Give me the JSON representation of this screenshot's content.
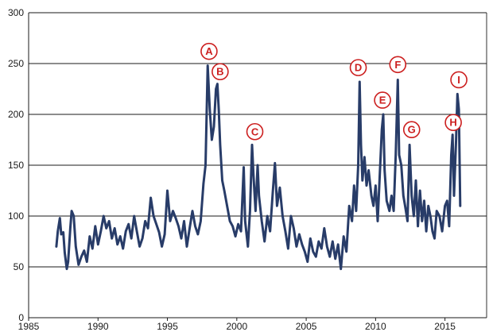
{
  "chart_data": {
    "type": "line",
    "title": "",
    "xlabel": "",
    "ylabel": "",
    "xlim": [
      1985,
      2018
    ],
    "ylim": [
      0,
      300
    ],
    "x_ticks": [
      1985,
      1990,
      1995,
      2000,
      2005,
      2010,
      2015
    ],
    "y_ticks": [
      0,
      50,
      100,
      150,
      200,
      250,
      300
    ],
    "grid": "horizontal",
    "line_color": "#283c68",
    "annotation_color": "#cc1f1f",
    "series": [
      {
        "points": [
          [
            1987.0,
            70
          ],
          [
            1987.1,
            85
          ],
          [
            1987.25,
            98
          ],
          [
            1987.35,
            82
          ],
          [
            1987.5,
            84
          ],
          [
            1987.6,
            64
          ],
          [
            1987.75,
            48
          ],
          [
            1987.85,
            55
          ],
          [
            1988.0,
            88
          ],
          [
            1988.1,
            105
          ],
          [
            1988.25,
            100
          ],
          [
            1988.4,
            70
          ],
          [
            1988.6,
            52
          ],
          [
            1988.8,
            60
          ],
          [
            1989.0,
            66
          ],
          [
            1989.2,
            55
          ],
          [
            1989.4,
            80
          ],
          [
            1989.6,
            68
          ],
          [
            1989.8,
            90
          ],
          [
            1990.0,
            72
          ],
          [
            1990.2,
            85
          ],
          [
            1990.4,
            100
          ],
          [
            1990.6,
            88
          ],
          [
            1990.8,
            95
          ],
          [
            1991.0,
            78
          ],
          [
            1991.2,
            88
          ],
          [
            1991.4,
            72
          ],
          [
            1991.6,
            80
          ],
          [
            1991.8,
            68
          ],
          [
            1992.0,
            85
          ],
          [
            1992.2,
            92
          ],
          [
            1992.4,
            78
          ],
          [
            1992.6,
            100
          ],
          [
            1992.8,
            85
          ],
          [
            1993.0,
            70
          ],
          [
            1993.2,
            78
          ],
          [
            1993.4,
            95
          ],
          [
            1993.6,
            88
          ],
          [
            1993.8,
            118
          ],
          [
            1994.0,
            100
          ],
          [
            1994.2,
            92
          ],
          [
            1994.4,
            84
          ],
          [
            1994.6,
            70
          ],
          [
            1994.8,
            82
          ],
          [
            1995.0,
            125
          ],
          [
            1995.2,
            95
          ],
          [
            1995.4,
            105
          ],
          [
            1995.6,
            98
          ],
          [
            1995.8,
            90
          ],
          [
            1996.0,
            78
          ],
          [
            1996.2,
            95
          ],
          [
            1996.4,
            70
          ],
          [
            1996.6,
            88
          ],
          [
            1996.8,
            105
          ],
          [
            1997.0,
            90
          ],
          [
            1997.2,
            82
          ],
          [
            1997.4,
            95
          ],
          [
            1997.6,
            132
          ],
          [
            1997.75,
            150
          ],
          [
            1997.9,
            248
          ],
          [
            1998.05,
            205
          ],
          [
            1998.2,
            175
          ],
          [
            1998.35,
            188
          ],
          [
            1998.5,
            225
          ],
          [
            1998.6,
            230
          ],
          [
            1998.7,
            205
          ],
          [
            1998.8,
            170
          ],
          [
            1998.95,
            135
          ],
          [
            1999.1,
            125
          ],
          [
            1999.3,
            110
          ],
          [
            1999.5,
            95
          ],
          [
            1999.7,
            90
          ],
          [
            1999.9,
            80
          ],
          [
            2000.1,
            92
          ],
          [
            2000.3,
            85
          ],
          [
            2000.5,
            148
          ],
          [
            2000.6,
            95
          ],
          [
            2000.8,
            70
          ],
          [
            2000.95,
            105
          ],
          [
            2001.1,
            170
          ],
          [
            2001.2,
            140
          ],
          [
            2001.35,
            105
          ],
          [
            2001.5,
            150
          ],
          [
            2001.6,
            120
          ],
          [
            2001.8,
            95
          ],
          [
            2002.0,
            75
          ],
          [
            2002.2,
            100
          ],
          [
            2002.4,
            85
          ],
          [
            2002.6,
            125
          ],
          [
            2002.75,
            152
          ],
          [
            2002.9,
            110
          ],
          [
            2003.1,
            128
          ],
          [
            2003.3,
            100
          ],
          [
            2003.5,
            85
          ],
          [
            2003.7,
            68
          ],
          [
            2003.9,
            100
          ],
          [
            2004.1,
            88
          ],
          [
            2004.3,
            70
          ],
          [
            2004.5,
            82
          ],
          [
            2004.7,
            72
          ],
          [
            2004.9,
            65
          ],
          [
            2005.1,
            55
          ],
          [
            2005.3,
            78
          ],
          [
            2005.5,
            65
          ],
          [
            2005.7,
            60
          ],
          [
            2005.9,
            75
          ],
          [
            2006.1,
            68
          ],
          [
            2006.3,
            88
          ],
          [
            2006.5,
            70
          ],
          [
            2006.7,
            60
          ],
          [
            2006.9,
            75
          ],
          [
            2007.1,
            58
          ],
          [
            2007.3,
            72
          ],
          [
            2007.5,
            48
          ],
          [
            2007.7,
            80
          ],
          [
            2007.9,
            65
          ],
          [
            2008.1,
            110
          ],
          [
            2008.3,
            95
          ],
          [
            2008.45,
            130
          ],
          [
            2008.6,
            105
          ],
          [
            2008.75,
            150
          ],
          [
            2008.85,
            232
          ],
          [
            2008.95,
            170
          ],
          [
            2009.05,
            135
          ],
          [
            2009.2,
            158
          ],
          [
            2009.35,
            130
          ],
          [
            2009.5,
            145
          ],
          [
            2009.7,
            120
          ],
          [
            2009.85,
            110
          ],
          [
            2010.0,
            130
          ],
          [
            2010.15,
            95
          ],
          [
            2010.3,
            140
          ],
          [
            2010.45,
            185
          ],
          [
            2010.55,
            200
          ],
          [
            2010.65,
            145
          ],
          [
            2010.8,
            115
          ],
          [
            2011.0,
            105
          ],
          [
            2011.15,
            120
          ],
          [
            2011.3,
            105
          ],
          [
            2011.45,
            160
          ],
          [
            2011.6,
            234
          ],
          [
            2011.7,
            160
          ],
          [
            2011.85,
            150
          ],
          [
            2012.0,
            120
          ],
          [
            2012.15,
            108
          ],
          [
            2012.3,
            95
          ],
          [
            2012.45,
            170
          ],
          [
            2012.6,
            120
          ],
          [
            2012.75,
            100
          ],
          [
            2012.9,
            135
          ],
          [
            2013.05,
            90
          ],
          [
            2013.2,
            125
          ],
          [
            2013.35,
            95
          ],
          [
            2013.5,
            115
          ],
          [
            2013.65,
            85
          ],
          [
            2013.8,
            110
          ],
          [
            2013.95,
            100
          ],
          [
            2014.1,
            85
          ],
          [
            2014.25,
            78
          ],
          [
            2014.4,
            105
          ],
          [
            2014.6,
            100
          ],
          [
            2014.8,
            85
          ],
          [
            2015.0,
            110
          ],
          [
            2015.15,
            115
          ],
          [
            2015.3,
            90
          ],
          [
            2015.45,
            160
          ],
          [
            2015.55,
            180
          ],
          [
            2015.65,
            120
          ],
          [
            2015.8,
            175
          ],
          [
            2015.9,
            220
          ],
          [
            2016.0,
            205
          ],
          [
            2016.1,
            110
          ]
        ]
      }
    ],
    "annotations": [
      {
        "label": "A",
        "x": 1998.0,
        "y": 262
      },
      {
        "label": "B",
        "x": 1998.8,
        "y": 242
      },
      {
        "label": "C",
        "x": 2001.3,
        "y": 183
      },
      {
        "label": "D",
        "x": 2008.75,
        "y": 246
      },
      {
        "label": "E",
        "x": 2010.5,
        "y": 214
      },
      {
        "label": "F",
        "x": 2011.6,
        "y": 249
      },
      {
        "label": "G",
        "x": 2012.6,
        "y": 185
      },
      {
        "label": "H",
        "x": 2015.6,
        "y": 192
      },
      {
        "label": "I",
        "x": 2016.0,
        "y": 234
      }
    ]
  }
}
